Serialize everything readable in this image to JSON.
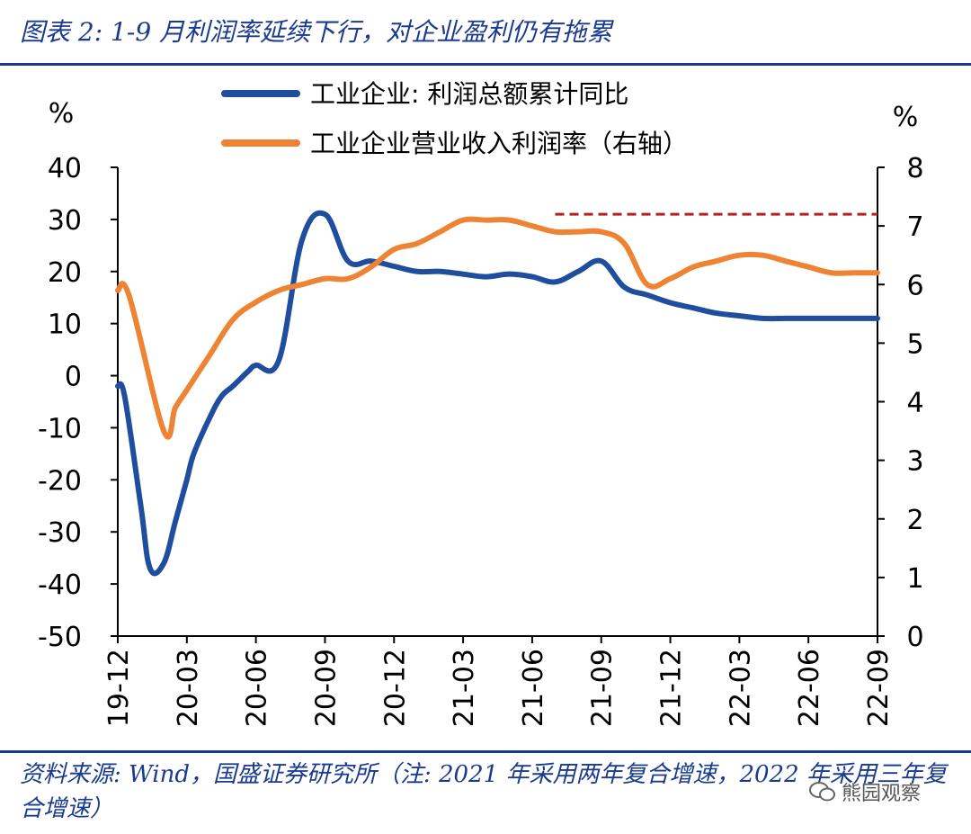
{
  "title": "图表 2: 1-9 月利润率延续下行，对企业盈利仍有拖累",
  "source": "资料来源: Wind，国盛证券研究所（注: 2021 年采用两年复合增速，2022 年采用三年复合增速）",
  "watermark": "熊园观察",
  "chart_data": {
    "type": "line",
    "left_unit": "%",
    "right_unit": "%",
    "y_left_range": [
      -50,
      40
    ],
    "y_left_ticks": [
      40,
      30,
      20,
      10,
      0,
      -10,
      -20,
      -30,
      -40,
      -50
    ],
    "y_right_range": [
      0,
      8
    ],
    "y_right_ticks": [
      8,
      7,
      6,
      5,
      4,
      3,
      2,
      1,
      0
    ],
    "x_tick_labels": [
      "19-12",
      "20-03",
      "20-06",
      "20-09",
      "20-12",
      "21-03",
      "21-06",
      "21-09",
      "21-12",
      "22-03",
      "22-06",
      "22-09"
    ],
    "series": [
      {
        "name": "工业企业: 利润总额累计同比",
        "axis": "left",
        "color": "#1f4e9e",
        "x": [
          0,
          0.3,
          1,
          1.4,
          2,
          2.5,
          3,
          3.3,
          4,
          4.5,
          5,
          5.7,
          6,
          7,
          8,
          9,
          10,
          11,
          12,
          13,
          14,
          15,
          16,
          17,
          18,
          19,
          20,
          21,
          22,
          23,
          24,
          25,
          26,
          27,
          28,
          29,
          30,
          31,
          32,
          33
        ],
        "values": [
          -2,
          -4,
          -25,
          -37,
          -36,
          -28,
          -20,
          -15,
          -8,
          -4,
          -2,
          1,
          2,
          3,
          26,
          31,
          22,
          22,
          21,
          20,
          20,
          19.5,
          19,
          19.5,
          19,
          18,
          20,
          22,
          17,
          15.5,
          14,
          13,
          12,
          11.5,
          11,
          11,
          11,
          11,
          11,
          11
        ]
      },
      {
        "name": "工业企业营业收入利润率（右轴）",
        "axis": "right",
        "color": "#ee8433",
        "x": [
          0,
          0.5,
          2,
          2.5,
          3,
          4,
          5,
          6,
          7,
          8,
          9,
          10,
          11,
          12,
          13,
          14,
          15,
          16,
          17,
          18,
          19,
          20,
          21,
          22,
          23,
          24,
          25,
          26,
          27,
          28,
          29,
          30,
          31,
          32,
          33
        ],
        "values": [
          5.9,
          5.8,
          3.5,
          3.9,
          4.2,
          4.8,
          5.4,
          5.7,
          5.9,
          6.0,
          6.1,
          6.1,
          6.3,
          6.6,
          6.7,
          6.9,
          7.1,
          7.1,
          7.1,
          7.0,
          6.9,
          6.9,
          6.9,
          6.7,
          6.0,
          6.1,
          6.3,
          6.4,
          6.5,
          6.5,
          6.4,
          6.3,
          6.2,
          6.2,
          6.2
        ]
      }
    ],
    "reference_line": {
      "axis": "left",
      "value": 31,
      "x_start": 19,
      "x_end": 33,
      "color": "#b22222",
      "style": "dashed"
    }
  }
}
